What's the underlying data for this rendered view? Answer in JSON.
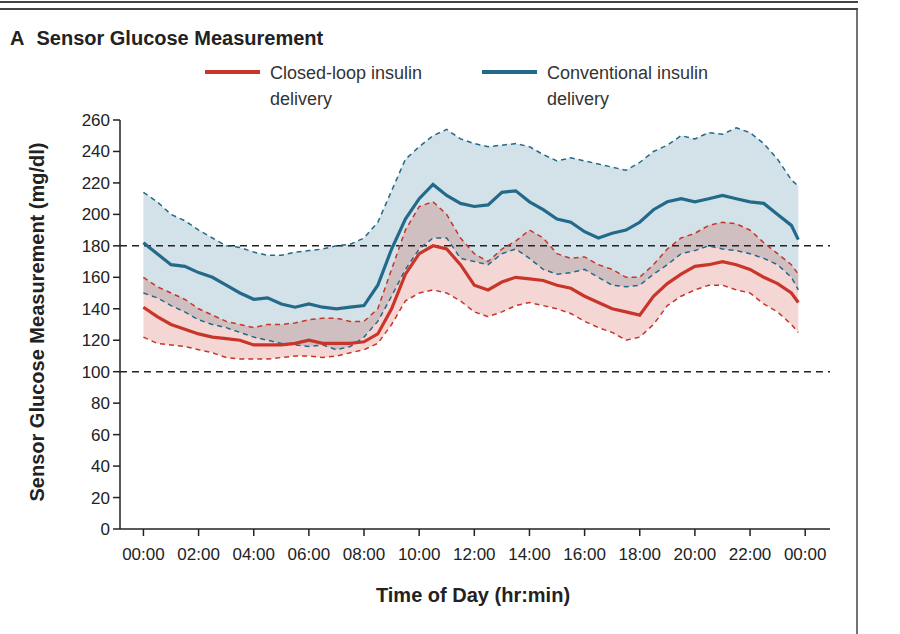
{
  "chart_data": {
    "type": "line",
    "panel_label": "A",
    "title": "Sensor Glucose Measurement",
    "x_label": "Time of Day (hr:min)",
    "y_label": "Sensor Glucose Measurement (mg/dl)",
    "x": [
      0,
      0.5,
      1,
      1.5,
      2,
      2.5,
      3,
      3.5,
      4,
      4.5,
      5,
      5.5,
      6,
      6.5,
      7,
      7.5,
      8,
      8.5,
      9,
      9.5,
      10,
      10.5,
      11,
      11.5,
      12,
      12.5,
      13,
      13.5,
      14,
      14.5,
      15,
      15.5,
      16,
      16.5,
      17,
      17.5,
      18,
      18.5,
      19,
      19.5,
      20,
      20.5,
      21,
      21.5,
      22,
      22.5,
      23,
      23.5,
      23.75
    ],
    "series": [
      {
        "name": "Closed-loop insulin delivery",
        "color": "#c8352a",
        "line_style": "solid",
        "values": [
          141,
          135,
          130,
          127,
          124,
          122,
          121,
          120,
          117,
          117,
          117,
          118,
          120,
          118,
          118,
          118,
          119,
          124,
          140,
          162,
          175,
          180,
          178,
          168,
          155,
          152,
          157,
          160,
          159,
          158,
          155,
          153,
          148,
          144,
          140,
          138,
          136,
          148,
          156,
          162,
          167,
          168,
          170,
          168,
          165,
          160,
          156,
          150,
          144
        ],
        "upper": [
          160,
          154,
          150,
          146,
          140,
          136,
          132,
          130,
          128,
          130,
          130,
          131,
          133,
          134,
          134,
          132,
          132,
          140,
          165,
          190,
          205,
          208,
          200,
          185,
          175,
          170,
          178,
          183,
          190,
          185,
          175,
          172,
          173,
          168,
          165,
          160,
          160,
          168,
          178,
          185,
          188,
          193,
          195,
          194,
          190,
          182,
          175,
          168,
          162
        ],
        "lower": [
          122,
          118,
          117,
          116,
          114,
          112,
          109,
          108,
          108,
          108,
          109,
          110,
          110,
          109,
          110,
          112,
          114,
          118,
          130,
          145,
          150,
          152,
          150,
          145,
          138,
          135,
          138,
          142,
          144,
          142,
          140,
          137,
          132,
          128,
          125,
          120,
          122,
          130,
          142,
          148,
          152,
          155,
          155,
          152,
          150,
          143,
          138,
          130,
          125
        ]
      },
      {
        "name": "Conventional insulin delivery",
        "color": "#236a8a",
        "line_style": "solid",
        "values": [
          182,
          175,
          168,
          167,
          163,
          160,
          155,
          150,
          146,
          147,
          143,
          141,
          143,
          141,
          140,
          141,
          142,
          155,
          178,
          197,
          210,
          219,
          212,
          207,
          205,
          206,
          214,
          215,
          208,
          203,
          197,
          195,
          189,
          185,
          188,
          190,
          195,
          203,
          208,
          210,
          208,
          210,
          212,
          210,
          208,
          207,
          200,
          193,
          184
        ],
        "upper": [
          214,
          208,
          200,
          196,
          190,
          185,
          180,
          179,
          176,
          174,
          174,
          176,
          177,
          178,
          180,
          181,
          185,
          195,
          215,
          235,
          243,
          250,
          254,
          248,
          245,
          243,
          244,
          245,
          243,
          238,
          234,
          236,
          234,
          232,
          230,
          228,
          233,
          240,
          244,
          250,
          248,
          252,
          251,
          255,
          252,
          245,
          235,
          222,
          218
        ],
        "lower": [
          150,
          147,
          142,
          138,
          133,
          130,
          128,
          125,
          122,
          120,
          118,
          117,
          116,
          117,
          114,
          116,
          122,
          132,
          148,
          165,
          178,
          185,
          185,
          172,
          170,
          168,
          175,
          178,
          172,
          165,
          162,
          163,
          165,
          160,
          155,
          154,
          155,
          162,
          168,
          175,
          177,
          180,
          178,
          177,
          175,
          172,
          168,
          160,
          152
        ]
      }
    ],
    "hlines": [
      180,
      100
    ],
    "xlim": [
      -0.85,
      24.9
    ],
    "xticks": [
      {
        "value": 0,
        "label": "00:00"
      },
      {
        "value": 2,
        "label": "02:00"
      },
      {
        "value": 4,
        "label": "04:00"
      },
      {
        "value": 6,
        "label": "06:00"
      },
      {
        "value": 8,
        "label": "08:00"
      },
      {
        "value": 10,
        "label": "10:00"
      },
      {
        "value": 12,
        "label": "12:00"
      },
      {
        "value": 14,
        "label": "14:00"
      },
      {
        "value": 16,
        "label": "16:00"
      },
      {
        "value": 18,
        "label": "18:00"
      },
      {
        "value": 20,
        "label": "20:00"
      },
      {
        "value": 22,
        "label": "22:00"
      },
      {
        "value": 24,
        "label": "00:00"
      }
    ],
    "ylim": [
      0,
      260
    ],
    "yticks": [
      0,
      20,
      40,
      60,
      80,
      100,
      120,
      140,
      160,
      180,
      200,
      220,
      240,
      260
    ],
    "legend": "top",
    "grid": false
  }
}
